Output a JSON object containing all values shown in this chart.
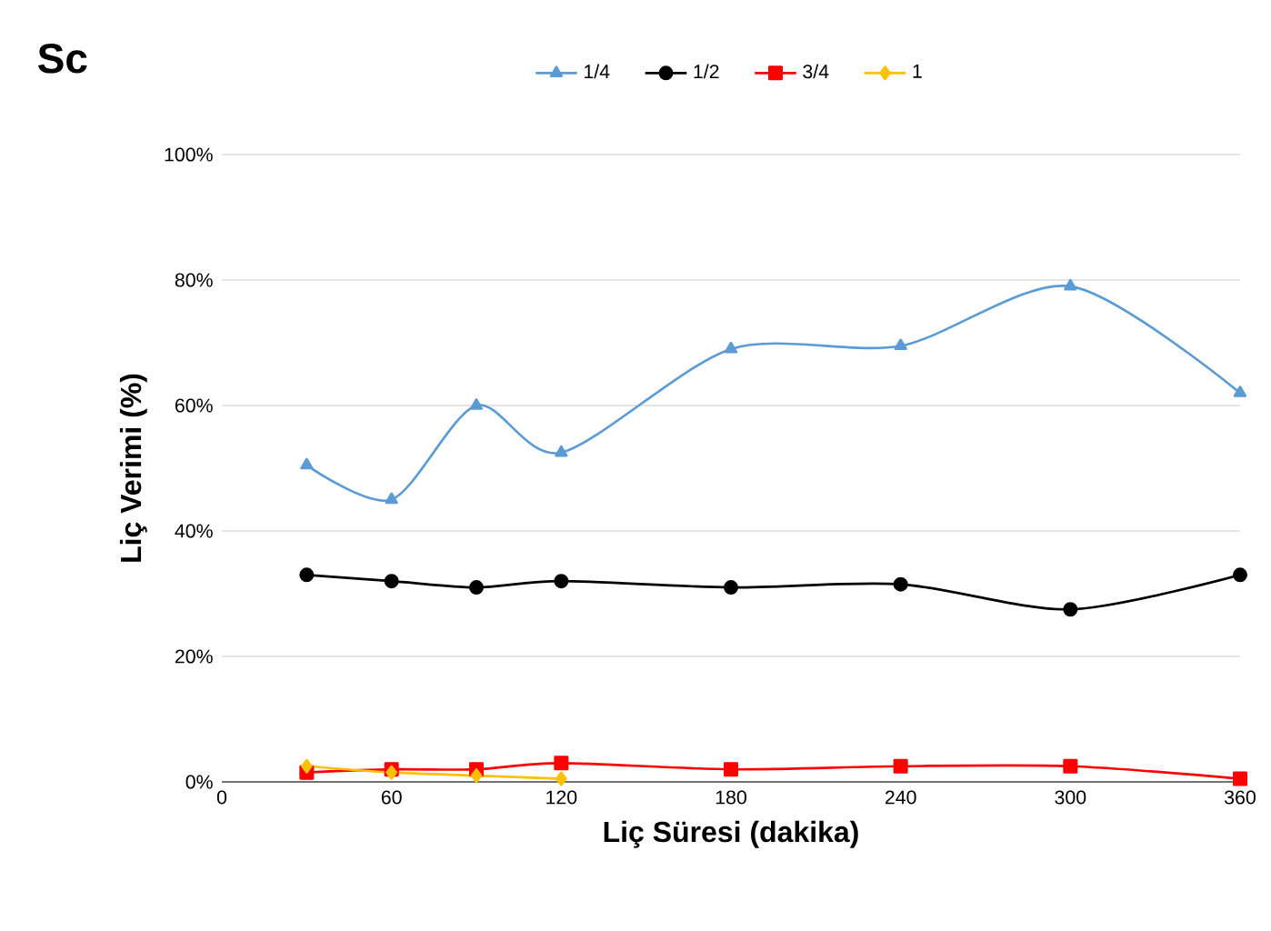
{
  "chart_data": {
    "type": "line",
    "title": "Sc",
    "xlabel": "Liç Süresi (dakika)",
    "ylabel": "Liç Verimi (%)",
    "x": [
      30,
      60,
      90,
      120,
      180,
      240,
      300,
      360
    ],
    "series": [
      {
        "name": "1/4",
        "color": "#5b9bd5",
        "marker": "triangle",
        "values": [
          50.5,
          45,
          60,
          52.5,
          69,
          69.5,
          79,
          62
        ]
      },
      {
        "name": "1/2",
        "color": "#000000",
        "marker": "circle",
        "values": [
          33,
          32,
          31,
          32,
          31,
          31.5,
          27.5,
          33
        ]
      },
      {
        "name": "3/4",
        "color": "#ff0000",
        "marker": "square",
        "values": [
          1.5,
          2,
          2,
          3,
          2,
          2.5,
          2.5,
          0.5
        ]
      },
      {
        "name": "1",
        "color": "#ffc000",
        "marker": "diamond",
        "x": [
          30,
          60,
          90,
          120
        ],
        "values": [
          2.5,
          1.5,
          1,
          0.5
        ]
      }
    ],
    "xlim": [
      0,
      360
    ],
    "xticks": [
      0,
      60,
      120,
      180,
      240,
      300,
      360
    ],
    "ylim": [
      0,
      100
    ],
    "yticks": [
      {
        "value": 0,
        "label": "0%"
      },
      {
        "value": 20,
        "label": "20%"
      },
      {
        "value": 40,
        "label": "40%"
      },
      {
        "value": 60,
        "label": "60%"
      },
      {
        "value": 80,
        "label": "80%"
      },
      {
        "value": 100,
        "label": "100%"
      }
    ],
    "grid": "y",
    "legend": "top",
    "line_style": "solid"
  }
}
